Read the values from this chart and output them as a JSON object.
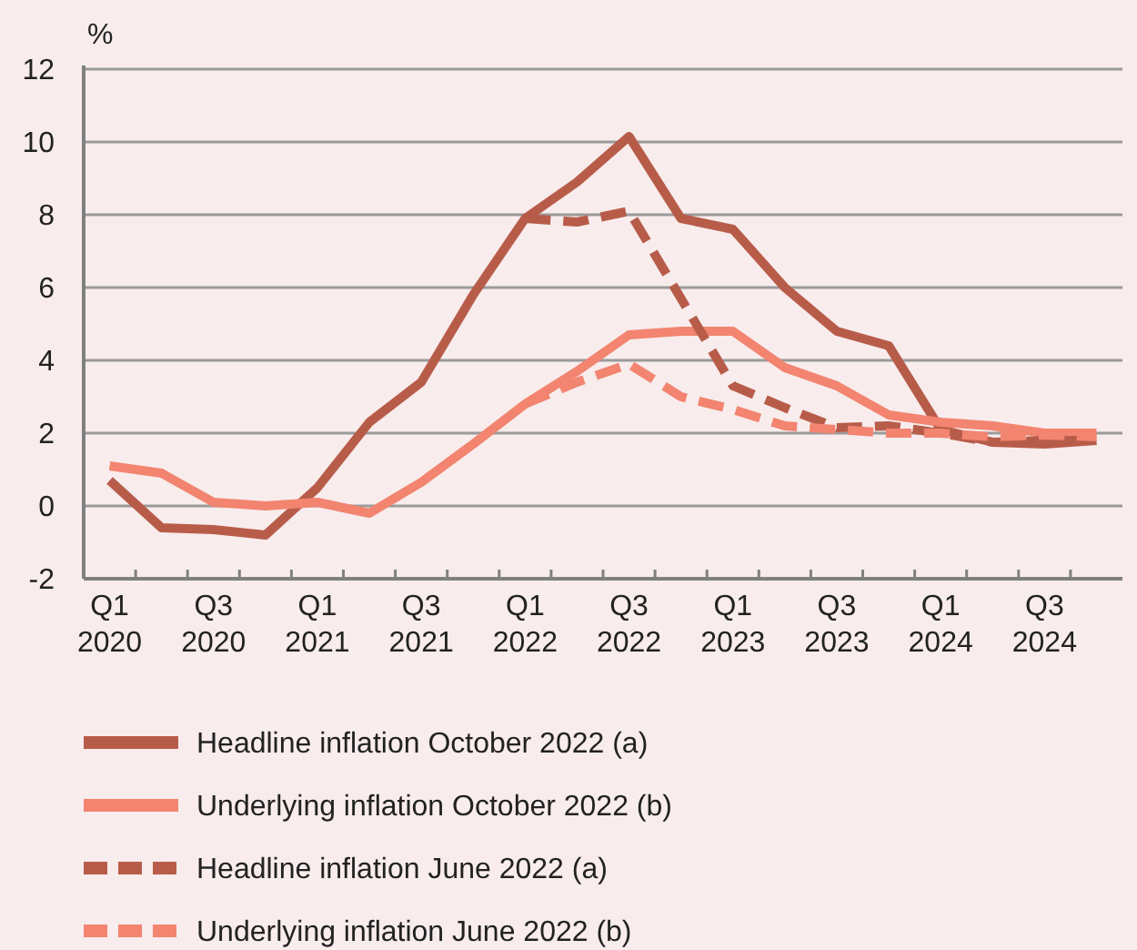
{
  "chart_data": {
    "type": "line",
    "ylabel": "%",
    "categories": [
      "Q1 2020",
      null,
      "Q3 2020",
      null,
      "Q1 2021",
      null,
      "Q3 2021",
      null,
      "Q1 2022",
      null,
      "Q3 2022",
      null,
      "Q1 2023",
      null,
      "Q3 2023",
      null,
      "Q1 2024",
      null,
      "Q3 2024",
      null
    ],
    "ylim": [
      -2,
      12
    ],
    "yticks": [
      -2,
      0,
      2,
      4,
      6,
      8,
      10,
      12
    ],
    "grid": "y",
    "legend": "bottom",
    "series": [
      {
        "name": "Headline inflation October 2022 (a)",
        "color": "#b85c4a",
        "line_style": "solid",
        "values": [
          0.7,
          -0.6,
          -0.65,
          -0.8,
          0.5,
          2.3,
          3.4,
          5.8,
          7.9,
          8.9,
          10.15,
          7.9,
          7.6,
          6.0,
          4.8,
          4.4,
          2.1,
          1.75,
          1.7,
          1.8
        ]
      },
      {
        "name": "Underlying inflation October 2022 (b)",
        "color": "#f28470",
        "line_style": "solid",
        "values": [
          1.1,
          0.9,
          0.1,
          0.0,
          0.1,
          -0.2,
          0.65,
          1.7,
          2.8,
          3.7,
          4.7,
          4.8,
          4.8,
          3.8,
          3.3,
          2.5,
          2.3,
          2.2,
          2.0,
          2.0
        ]
      },
      {
        "name": "Headline inflation June 2022 (a)",
        "color": "#b85c4a",
        "line_style": "dashed",
        "values": [
          null,
          null,
          null,
          null,
          null,
          null,
          null,
          null,
          7.9,
          7.8,
          8.1,
          5.7,
          3.3,
          2.7,
          2.15,
          2.2,
          2.0,
          1.75,
          1.8,
          1.8
        ]
      },
      {
        "name": "Underlying inflation June 2022 (b)",
        "color": "#f28470",
        "line_style": "dashed",
        "values": [
          null,
          null,
          null,
          null,
          null,
          null,
          null,
          null,
          2.8,
          3.4,
          3.9,
          3.0,
          2.65,
          2.2,
          2.1,
          2.0,
          2.0,
          1.9,
          1.95,
          1.9
        ]
      }
    ]
  }
}
